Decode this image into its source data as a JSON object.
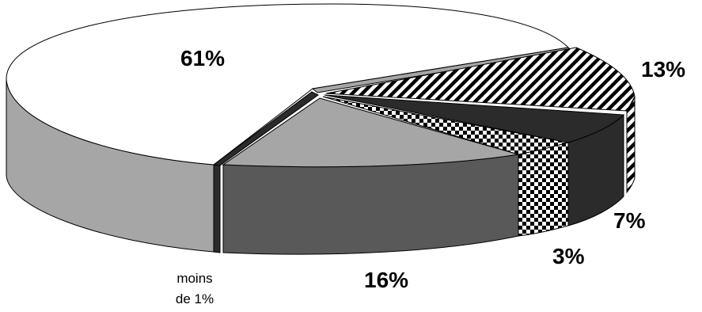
{
  "chart_data": {
    "type": "pie",
    "title": "",
    "style": "3d-exploded",
    "slices": [
      {
        "label": "61%",
        "value": 61,
        "color": "#ffffff",
        "pattern": "none"
      },
      {
        "label": "13%",
        "value": 13,
        "color": "#000000",
        "pattern": "diagonal-stripes"
      },
      {
        "label": "7%",
        "value": 7,
        "color": "#2b2b2b",
        "pattern": "none"
      },
      {
        "label": "3%",
        "value": 3,
        "color": "#000000",
        "pattern": "checkerboard"
      },
      {
        "label": "16%",
        "value": 16,
        "color": "#a6a6a6",
        "pattern": "none"
      },
      {
        "label_line1": "moins",
        "label_line2": "de 1%",
        "value": 0.5,
        "color": "#2b2b2b",
        "pattern": "none"
      }
    ]
  }
}
